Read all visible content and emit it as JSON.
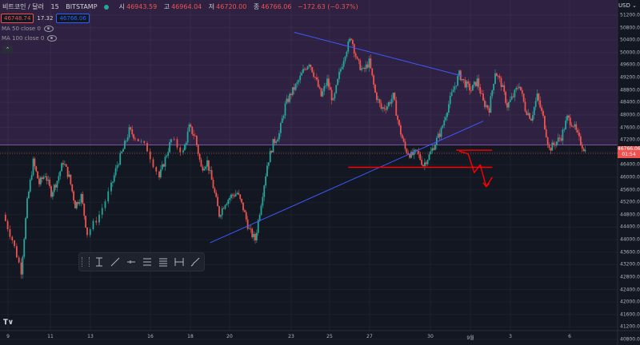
{
  "header": {
    "symbol": "비트코인 / 달러",
    "interval": "15",
    "exchange": "BITSTAMP",
    "ohlc": [
      {
        "key": "시",
        "value": "46943.59"
      },
      {
        "key": "고",
        "value": "46964.04"
      },
      {
        "key": "저",
        "value": "46720.00"
      },
      {
        "key": "종",
        "value": "46766.06"
      }
    ],
    "change": "−172.63 (−0.37%)",
    "sell_price": "46748.74",
    "spread": "17.32",
    "buy_price": "46766.06"
  },
  "indicators": [
    {
      "label": "MA 50 close 0"
    },
    {
      "label": "MA 100 close 0"
    }
  ],
  "axis": {
    "currency": "USD",
    "last_price": "46766.06",
    "countdown": "01:54"
  },
  "colors": {
    "up": "#26a69a",
    "down": "#ef5350",
    "zone": "#2f2141",
    "trend": "#3d5afe",
    "level": "#ff0000"
  },
  "icons": [
    "tradingview-logo-icon",
    "eye-icon",
    "collapse-chevron-icon"
  ],
  "chart_data": {
    "type": "candlestick",
    "x_axis_labels": [
      "9",
      "11",
      "13",
      "16",
      "18",
      "20",
      "23",
      "25",
      "27",
      "30",
      "9월",
      "3",
      "6"
    ],
    "y_axis_labels": [
      "51200.00",
      "50800.00",
      "50400.00",
      "50000.00",
      "49600.00",
      "49200.00",
      "48800.00",
      "48400.00",
      "48000.00",
      "47600.00",
      "47200.00",
      "46800.00",
      "46400.00",
      "46000.00",
      "45600.00",
      "45200.00",
      "44800.00",
      "44400.00",
      "44000.00",
      "43600.00",
      "43200.00",
      "42800.00",
      "42400.00",
      "42000.00",
      "41600.00",
      "41200.00",
      "40800.00"
    ],
    "ylim": [
      40650,
      51500
    ],
    "y_range_labels": [
      51200,
      40800
    ],
    "zone_min": 47040,
    "price_path": [
      [
        0,
        44800
      ],
      [
        1.5,
        44000
      ],
      [
        3,
        43000
      ],
      [
        4,
        45200
      ],
      [
        5,
        46500
      ],
      [
        6,
        45800
      ],
      [
        7,
        46100
      ],
      [
        8,
        45500
      ],
      [
        9,
        45900
      ],
      [
        10,
        46500
      ],
      [
        11,
        46000
      ],
      [
        12,
        45100
      ],
      [
        13,
        45400
      ],
      [
        14,
        44200
      ],
      [
        16,
        44800
      ],
      [
        18,
        45700
      ],
      [
        19,
        46400
      ],
      [
        20,
        46900
      ],
      [
        21,
        47500
      ],
      [
        22,
        47300
      ],
      [
        24,
        46900
      ],
      [
        26,
        46000
      ],
      [
        27,
        46600
      ],
      [
        28,
        47200
      ],
      [
        30,
        46800
      ],
      [
        31,
        47600
      ],
      [
        32,
        47300
      ],
      [
        33,
        46300
      ],
      [
        34,
        46500
      ],
      [
        35,
        45700
      ],
      [
        36,
        44800
      ],
      [
        37,
        45200
      ],
      [
        38,
        45400
      ],
      [
        39,
        45500
      ],
      [
        40,
        45000
      ],
      [
        41,
        44300
      ],
      [
        42,
        44000
      ],
      [
        43,
        45200
      ],
      [
        44,
        46400
      ],
      [
        45,
        47100
      ],
      [
        46,
        47400
      ],
      [
        47,
        48300
      ],
      [
        48,
        48700
      ],
      [
        49,
        49000
      ],
      [
        50,
        49400
      ],
      [
        51,
        49700
      ],
      [
        52,
        49200
      ],
      [
        53,
        48600
      ],
      [
        54,
        49100
      ],
      [
        55,
        48400
      ],
      [
        56,
        49300
      ],
      [
        57,
        50000
      ],
      [
        58,
        50500
      ],
      [
        59,
        49700
      ],
      [
        60,
        49400
      ],
      [
        61,
        49700
      ],
      [
        62,
        48700
      ],
      [
        63,
        48200
      ],
      [
        64,
        48300
      ],
      [
        65,
        48600
      ],
      [
        66,
        47600
      ],
      [
        67,
        46900
      ],
      [
        68,
        46700
      ],
      [
        69,
        46800
      ],
      [
        70,
        46400
      ],
      [
        71,
        46700
      ],
      [
        72,
        47100
      ],
      [
        73,
        47500
      ],
      [
        74,
        48200
      ],
      [
        75,
        48800
      ],
      [
        76,
        49300
      ],
      [
        77,
        49000
      ],
      [
        78,
        48800
      ],
      [
        79,
        49100
      ],
      [
        80,
        48400
      ],
      [
        81,
        48200
      ],
      [
        82,
        49400
      ],
      [
        83,
        49000
      ],
      [
        84,
        48300
      ],
      [
        85,
        48600
      ],
      [
        86,
        49000
      ],
      [
        87,
        48200
      ],
      [
        88,
        47900
      ],
      [
        89,
        48600
      ],
      [
        90,
        47900
      ],
      [
        91,
        46900
      ],
      [
        92,
        47100
      ],
      [
        93,
        47300
      ],
      [
        94,
        47900
      ],
      [
        95,
        47700
      ],
      [
        96,
        47200
      ],
      [
        97,
        46850
      ]
    ],
    "trend_lines": [
      {
        "name": "upper",
        "points": [
          [
            48.5,
            50650
          ],
          [
            76.5,
            49250
          ]
        ]
      },
      {
        "name": "lower",
        "points": [
          [
            34.5,
            43900
          ],
          [
            80,
            47800
          ]
        ]
      }
    ],
    "levels": [
      {
        "price": 46870,
        "x": [
          75.5,
          81.5
        ]
      },
      {
        "price": 46320,
        "x": [
          57.5,
          81.5
        ]
      }
    ],
    "projection": [
      [
        76,
        46840
      ],
      [
        77.5,
        46750
      ],
      [
        78.5,
        46150
      ],
      [
        79.5,
        46400
      ],
      [
        80.5,
        45700
      ],
      [
        81.5,
        46000
      ]
    ]
  }
}
